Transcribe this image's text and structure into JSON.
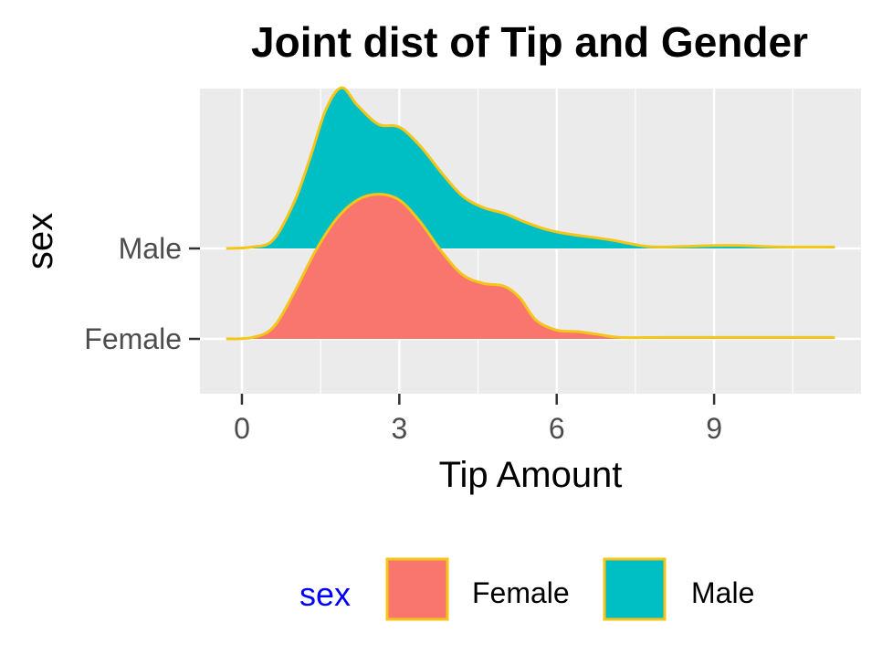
{
  "chart_data": {
    "type": "area",
    "subtype": "ridgeline-density",
    "title": "Joint dist of Tip and Gender",
    "xlabel": "Tip Amount",
    "ylabel": "sex",
    "xlim": [
      -0.8,
      11.8
    ],
    "x_ticks": [
      0,
      3,
      6,
      9
    ],
    "x_tick_labels": [
      "0",
      "3",
      "6",
      "9"
    ],
    "categories": [
      "Female",
      "Male"
    ],
    "grid": true,
    "outline_color": "#F5C518",
    "panel_background": "#EBEBEB",
    "legend": {
      "title": "sex",
      "title_color": "#0000FF",
      "position": "bottom"
    },
    "series": [
      {
        "name": "Female",
        "color": "#F8766D",
        "x": [
          -0.3,
          0.2,
          0.6,
          1.0,
          1.4,
          1.8,
          2.2,
          2.6,
          3.0,
          3.4,
          3.8,
          4.2,
          4.6,
          5.0,
          5.3,
          5.6,
          6.0,
          6.4,
          6.8,
          7.2,
          8.0,
          9.0,
          10.0,
          11.3
        ],
        "density": [
          0.0,
          0.01,
          0.08,
          0.32,
          0.6,
          0.82,
          0.95,
          0.99,
          0.95,
          0.8,
          0.6,
          0.44,
          0.38,
          0.36,
          0.28,
          0.13,
          0.06,
          0.05,
          0.03,
          0.01,
          0.01,
          0.01,
          0.01,
          0.01
        ]
      },
      {
        "name": "Male",
        "color": "#00BFC4",
        "x": [
          -0.3,
          0.2,
          0.6,
          1.0,
          1.3,
          1.6,
          1.9,
          2.2,
          2.6,
          3.0,
          3.4,
          3.8,
          4.2,
          4.6,
          5.0,
          5.4,
          5.8,
          6.2,
          7.0,
          7.6,
          8.0,
          9.0,
          9.5,
          10.3,
          11.3
        ],
        "density": [
          0.0,
          0.01,
          0.06,
          0.32,
          0.62,
          0.95,
          1.1,
          0.98,
          0.85,
          0.83,
          0.7,
          0.52,
          0.36,
          0.28,
          0.24,
          0.18,
          0.13,
          0.1,
          0.06,
          0.02,
          0.01,
          0.02,
          0.02,
          0.01,
          0.01
        ]
      }
    ]
  }
}
